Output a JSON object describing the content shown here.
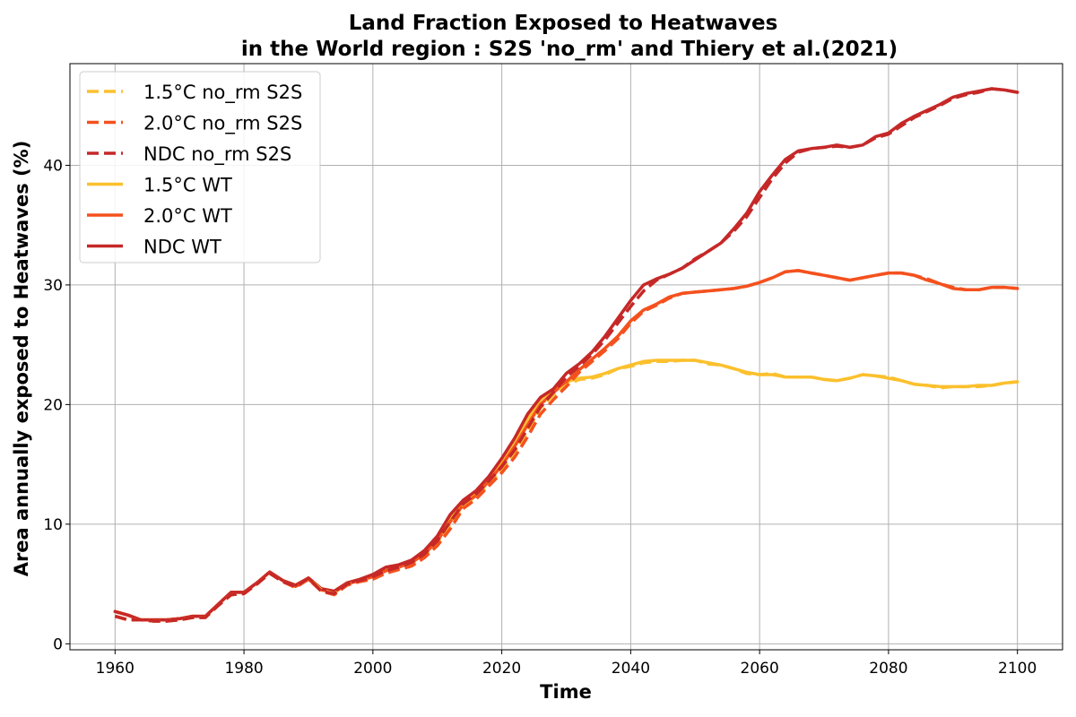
{
  "chart_data": {
    "type": "line",
    "title_line1": "Land Fraction Exposed to Heatwaves",
    "title_line2": "in the World region : S2S 'no_rm' and Thiery et al.(2021)",
    "xlabel": "Time",
    "ylabel": "Area annually exposed to Heatwaves (%)",
    "xlim": [
      1953,
      2107
    ],
    "ylim": [
      -0.5,
      48.5
    ],
    "xticks": [
      1960,
      1980,
      2000,
      2020,
      2040,
      2060,
      2080,
      2100
    ],
    "yticks": [
      0,
      10,
      20,
      30,
      40
    ],
    "grid": true,
    "legend_position": "upper-left",
    "series": [
      {
        "name": "1.5°C no_rm S2S",
        "color": "#fbc02d",
        "dashed": true,
        "x": [
          1960,
          1962,
          1964,
          1966,
          1968,
          1970,
          1972,
          1974,
          1976,
          1978,
          1980,
          1982,
          1984,
          1986,
          1988,
          1990,
          1992,
          1994,
          1996,
          1998,
          2000,
          2002,
          2004,
          2006,
          2008,
          2010,
          2012,
          2014,
          2016,
          2018,
          2020,
          2022,
          2024,
          2026,
          2028,
          2030,
          2032,
          2034,
          2036,
          2038,
          2040,
          2042,
          2044,
          2046,
          2048,
          2050,
          2052,
          2054,
          2056,
          2058,
          2060,
          2062,
          2064,
          2066,
          2068,
          2070,
          2072,
          2074,
          2076,
          2078,
          2080,
          2082,
          2084,
          2086,
          2088,
          2090,
          2092,
          2094,
          2096,
          2098,
          2100
        ],
        "y": [
          2.3,
          2.0,
          2.0,
          1.9,
          1.9,
          2.0,
          2.2,
          2.2,
          3.2,
          4.1,
          4.2,
          5.0,
          5.9,
          5.2,
          4.8,
          5.5,
          4.5,
          4.2,
          5.0,
          5.2,
          5.5,
          6.0,
          6.3,
          6.6,
          7.3,
          8.4,
          10.0,
          11.5,
          12.3,
          13.3,
          14.5,
          16.0,
          17.8,
          19.7,
          20.8,
          21.6,
          22.1,
          22.2,
          22.5,
          23.0,
          23.2,
          23.5,
          23.6,
          23.6,
          23.7,
          23.7,
          23.4,
          23.3,
          23.0,
          22.6,
          22.5,
          22.6,
          22.3,
          22.3,
          22.3,
          22.1,
          22.0,
          22.2,
          22.5,
          22.4,
          22.3,
          22.0,
          21.7,
          21.6,
          21.4,
          21.5,
          21.5,
          21.5,
          21.6,
          21.8,
          21.9
        ]
      },
      {
        "name": "2.0°C no_rm S2S",
        "color": "#f4511e",
        "dashed": true,
        "x": [
          1960,
          1962,
          1964,
          1966,
          1968,
          1970,
          1972,
          1974,
          1976,
          1978,
          1980,
          1982,
          1984,
          1986,
          1988,
          1990,
          1992,
          1994,
          1996,
          1998,
          2000,
          2002,
          2004,
          2006,
          2008,
          2010,
          2012,
          2014,
          2016,
          2018,
          2020,
          2022,
          2024,
          2026,
          2028,
          2030,
          2032,
          2034,
          2036,
          2038,
          2040,
          2042,
          2044,
          2046,
          2048,
          2050,
          2052,
          2054,
          2056,
          2058,
          2060,
          2062,
          2064,
          2066,
          2068,
          2070,
          2072,
          2074,
          2076,
          2078,
          2080,
          2082,
          2084,
          2086,
          2088,
          2090,
          2092,
          2094,
          2096,
          2098,
          2100
        ],
        "y": [
          2.3,
          2.0,
          2.0,
          1.9,
          1.9,
          2.0,
          2.2,
          2.2,
          3.2,
          4.1,
          4.2,
          5.0,
          5.9,
          5.2,
          4.7,
          5.4,
          4.4,
          4.1,
          4.9,
          5.2,
          5.4,
          5.9,
          6.2,
          6.5,
          7.2,
          8.2,
          9.6,
          11.3,
          12.1,
          13.2,
          14.3,
          15.6,
          17.3,
          19.2,
          20.4,
          21.5,
          22.7,
          23.6,
          24.5,
          25.5,
          26.8,
          27.8,
          28.3,
          28.9,
          29.3,
          29.4,
          29.5,
          29.6,
          29.7,
          29.9,
          30.2,
          30.6,
          31.1,
          31.2,
          31.0,
          30.8,
          30.6,
          30.4,
          30.6,
          30.8,
          31.0,
          31.0,
          30.8,
          30.5,
          30.1,
          29.8,
          29.6,
          29.6,
          29.8,
          29.8,
          29.7
        ]
      },
      {
        "name": "NDC no_rm S2S",
        "color": "#c62828",
        "dashed": true,
        "x": [
          1960,
          1962,
          1964,
          1966,
          1968,
          1970,
          1972,
          1974,
          1976,
          1978,
          1980,
          1982,
          1984,
          1986,
          1988,
          1990,
          1992,
          1994,
          1996,
          1998,
          2000,
          2002,
          2004,
          2006,
          2008,
          2010,
          2012,
          2014,
          2016,
          2018,
          2020,
          2022,
          2024,
          2026,
          2028,
          2030,
          2032,
          2034,
          2036,
          2038,
          2040,
          2042,
          2044,
          2046,
          2048,
          2050,
          2052,
          2054,
          2056,
          2058,
          2060,
          2062,
          2064,
          2066,
          2068,
          2070,
          2072,
          2074,
          2076,
          2078,
          2080,
          2082,
          2084,
          2086,
          2088,
          2090,
          2092,
          2094,
          2096,
          2098,
          2100
        ],
        "y": [
          2.3,
          2.0,
          2.0,
          1.9,
          1.9,
          2.0,
          2.2,
          2.2,
          3.2,
          4.1,
          4.2,
          5.0,
          5.9,
          5.2,
          4.8,
          5.5,
          4.4,
          4.2,
          5.0,
          5.3,
          5.6,
          6.1,
          6.4,
          6.8,
          7.5,
          8.6,
          10.2,
          11.7,
          12.5,
          13.6,
          14.8,
          16.2,
          18.0,
          19.8,
          21.0,
          22.3,
          23.2,
          24.2,
          25.4,
          26.8,
          28.2,
          29.5,
          30.4,
          30.9,
          31.4,
          32.2,
          32.8,
          33.5,
          34.5,
          35.7,
          37.3,
          38.9,
          40.2,
          41.1,
          41.4,
          41.5,
          41.6,
          41.5,
          41.7,
          42.3,
          42.6,
          43.3,
          44.0,
          44.5,
          45.0,
          45.6,
          45.9,
          46.1,
          46.4,
          46.3,
          46.1
        ]
      },
      {
        "name": "1.5°C WT",
        "color": "#fbc02d",
        "dashed": false,
        "x": [
          1960,
          1962,
          1964,
          1966,
          1968,
          1970,
          1972,
          1974,
          1976,
          1978,
          1980,
          1982,
          1984,
          1986,
          1988,
          1990,
          1992,
          1994,
          1996,
          1998,
          2000,
          2002,
          2004,
          2006,
          2008,
          2010,
          2012,
          2014,
          2016,
          2018,
          2020,
          2022,
          2024,
          2026,
          2028,
          2030,
          2032,
          2034,
          2036,
          2038,
          2040,
          2042,
          2044,
          2046,
          2048,
          2050,
          2052,
          2054,
          2056,
          2058,
          2060,
          2062,
          2064,
          2066,
          2068,
          2070,
          2072,
          2074,
          2076,
          2078,
          2080,
          2082,
          2084,
          2086,
          2088,
          2090,
          2092,
          2094,
          2096,
          2098,
          2100
        ],
        "y": [
          2.7,
          2.4,
          2.0,
          2.0,
          2.0,
          2.1,
          2.3,
          2.3,
          3.3,
          4.3,
          4.3,
          5.1,
          6.0,
          5.3,
          4.9,
          5.5,
          4.6,
          4.4,
          5.1,
          5.4,
          5.7,
          6.2,
          6.5,
          6.9,
          7.6,
          8.8,
          10.5,
          11.8,
          12.6,
          13.8,
          15.2,
          17.0,
          18.8,
          20.4,
          21.3,
          21.9,
          22.2,
          22.3,
          22.6,
          23.0,
          23.3,
          23.6,
          23.7,
          23.7,
          23.7,
          23.7,
          23.5,
          23.3,
          23.0,
          22.7,
          22.5,
          22.5,
          22.3,
          22.3,
          22.3,
          22.1,
          22.0,
          22.2,
          22.5,
          22.4,
          22.2,
          22.0,
          21.7,
          21.6,
          21.5,
          21.5,
          21.5,
          21.6,
          21.6,
          21.8,
          21.9
        ]
      },
      {
        "name": "2.0°C WT",
        "color": "#f4511e",
        "dashed": false,
        "x": [
          1960,
          1962,
          1964,
          1966,
          1968,
          1970,
          1972,
          1974,
          1976,
          1978,
          1980,
          1982,
          1984,
          1986,
          1988,
          1990,
          1992,
          1994,
          1996,
          1998,
          2000,
          2002,
          2004,
          2006,
          2008,
          2010,
          2012,
          2014,
          2016,
          2018,
          2020,
          2022,
          2024,
          2026,
          2028,
          2030,
          2032,
          2034,
          2036,
          2038,
          2040,
          2042,
          2044,
          2046,
          2048,
          2050,
          2052,
          2054,
          2056,
          2058,
          2060,
          2062,
          2064,
          2066,
          2068,
          2070,
          2072,
          2074,
          2076,
          2078,
          2080,
          2082,
          2084,
          2086,
          2088,
          2090,
          2092,
          2094,
          2096,
          2098,
          2100
        ],
        "y": [
          2.7,
          2.4,
          2.0,
          2.0,
          2.0,
          2.1,
          2.3,
          2.3,
          3.3,
          4.3,
          4.3,
          5.1,
          6.0,
          5.3,
          4.8,
          5.4,
          4.5,
          4.3,
          5.0,
          5.3,
          5.6,
          6.1,
          6.4,
          6.8,
          7.5,
          8.6,
          10.2,
          11.6,
          12.4,
          13.6,
          14.9,
          16.5,
          18.3,
          20.0,
          21.0,
          21.9,
          22.9,
          23.8,
          24.7,
          25.7,
          27.0,
          27.9,
          28.4,
          29.0,
          29.3,
          29.4,
          29.5,
          29.6,
          29.7,
          29.9,
          30.2,
          30.6,
          31.1,
          31.2,
          31.0,
          30.8,
          30.6,
          30.4,
          30.6,
          30.8,
          31.0,
          31.0,
          30.8,
          30.4,
          30.1,
          29.7,
          29.6,
          29.6,
          29.8,
          29.8,
          29.7
        ]
      },
      {
        "name": "NDC WT",
        "color": "#c62828",
        "dashed": false,
        "x": [
          1960,
          1962,
          1964,
          1966,
          1968,
          1970,
          1972,
          1974,
          1976,
          1978,
          1980,
          1982,
          1984,
          1986,
          1988,
          1990,
          1992,
          1994,
          1996,
          1998,
          2000,
          2002,
          2004,
          2006,
          2008,
          2010,
          2012,
          2014,
          2016,
          2018,
          2020,
          2022,
          2024,
          2026,
          2028,
          2030,
          2032,
          2034,
          2036,
          2038,
          2040,
          2042,
          2044,
          2046,
          2048,
          2050,
          2052,
          2054,
          2056,
          2058,
          2060,
          2062,
          2064,
          2066,
          2068,
          2070,
          2072,
          2074,
          2076,
          2078,
          2080,
          2082,
          2084,
          2086,
          2088,
          2090,
          2092,
          2094,
          2096,
          2098,
          2100
        ],
        "y": [
          2.7,
          2.4,
          2.0,
          2.0,
          2.0,
          2.1,
          2.3,
          2.3,
          3.3,
          4.3,
          4.3,
          5.1,
          6.0,
          5.3,
          4.9,
          5.5,
          4.6,
          4.4,
          5.1,
          5.4,
          5.8,
          6.4,
          6.6,
          7.0,
          7.8,
          9.0,
          10.8,
          12.0,
          12.8,
          14.0,
          15.5,
          17.2,
          19.2,
          20.6,
          21.3,
          22.6,
          23.4,
          24.4,
          25.7,
          27.2,
          28.7,
          30.0,
          30.5,
          30.9,
          31.4,
          32.1,
          32.8,
          33.5,
          34.7,
          36.0,
          37.8,
          39.2,
          40.5,
          41.2,
          41.4,
          41.5,
          41.7,
          41.5,
          41.7,
          42.4,
          42.7,
          43.5,
          44.1,
          44.6,
          45.1,
          45.7,
          46.0,
          46.2,
          46.4,
          46.3,
          46.1
        ]
      }
    ]
  }
}
